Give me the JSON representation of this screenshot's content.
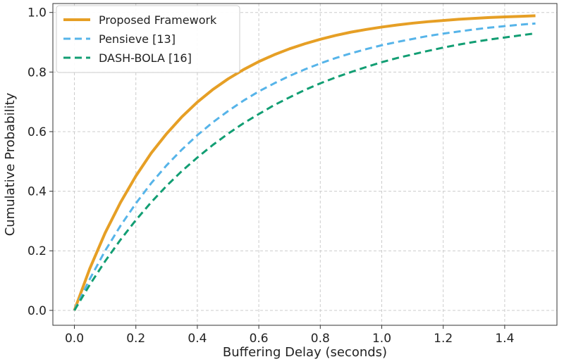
{
  "chart_data": {
    "type": "line",
    "xlabel": "Buffering Delay (seconds)",
    "ylabel": "Cumulative Probability",
    "xlim": [
      -0.07,
      1.57
    ],
    "ylim": [
      -0.05,
      1.03
    ],
    "xticks": [
      "0.0",
      "0.2",
      "0.4",
      "0.6",
      "0.8",
      "1.0",
      "1.2",
      "1.4"
    ],
    "yticks": [
      "0.0",
      "0.2",
      "0.4",
      "0.6",
      "0.8",
      "1.0"
    ],
    "grid": true,
    "legend_position": "top-left",
    "x": [
      0.0,
      0.05,
      0.1,
      0.15,
      0.2,
      0.25,
      0.3,
      0.35,
      0.4,
      0.45,
      0.5,
      0.55,
      0.6,
      0.65,
      0.7,
      0.75,
      0.8,
      0.85,
      0.9,
      0.95,
      1.0,
      1.05,
      1.1,
      1.15,
      1.2,
      1.25,
      1.3,
      1.35,
      1.4,
      1.45,
      1.5
    ],
    "series": [
      {
        "name": "Proposed Framework",
        "color": "#E69F25",
        "style": "solid",
        "values": [
          0.0,
          0.14,
          0.26,
          0.362,
          0.451,
          0.528,
          0.593,
          0.65,
          0.699,
          0.741,
          0.777,
          0.808,
          0.835,
          0.858,
          0.878,
          0.895,
          0.91,
          0.923,
          0.934,
          0.943,
          0.951,
          0.958,
          0.964,
          0.969,
          0.973,
          0.977,
          0.98,
          0.983,
          0.985,
          0.987,
          0.989
        ]
      },
      {
        "name": "Pensieve [13]",
        "color": "#56B4E9",
        "style": "dashed",
        "values": [
          0.0,
          0.105,
          0.2,
          0.284,
          0.359,
          0.427,
          0.487,
          0.54,
          0.588,
          0.631,
          0.669,
          0.704,
          0.735,
          0.762,
          0.787,
          0.809,
          0.829,
          0.847,
          0.863,
          0.877,
          0.89,
          0.901,
          0.911,
          0.921,
          0.929,
          0.936,
          0.943,
          0.949,
          0.954,
          0.959,
          0.963
        ]
      },
      {
        "name": "DASH-BOLA [16]",
        "color": "#129E73",
        "style": "dashed",
        "values": [
          0.0,
          0.086,
          0.165,
          0.237,
          0.303,
          0.363,
          0.418,
          0.468,
          0.513,
          0.555,
          0.593,
          0.628,
          0.659,
          0.689,
          0.715,
          0.74,
          0.762,
          0.782,
          0.8,
          0.817,
          0.833,
          0.847,
          0.859,
          0.871,
          0.882,
          0.892,
          0.901,
          0.909,
          0.916,
          0.923,
          0.93
        ]
      }
    ]
  }
}
